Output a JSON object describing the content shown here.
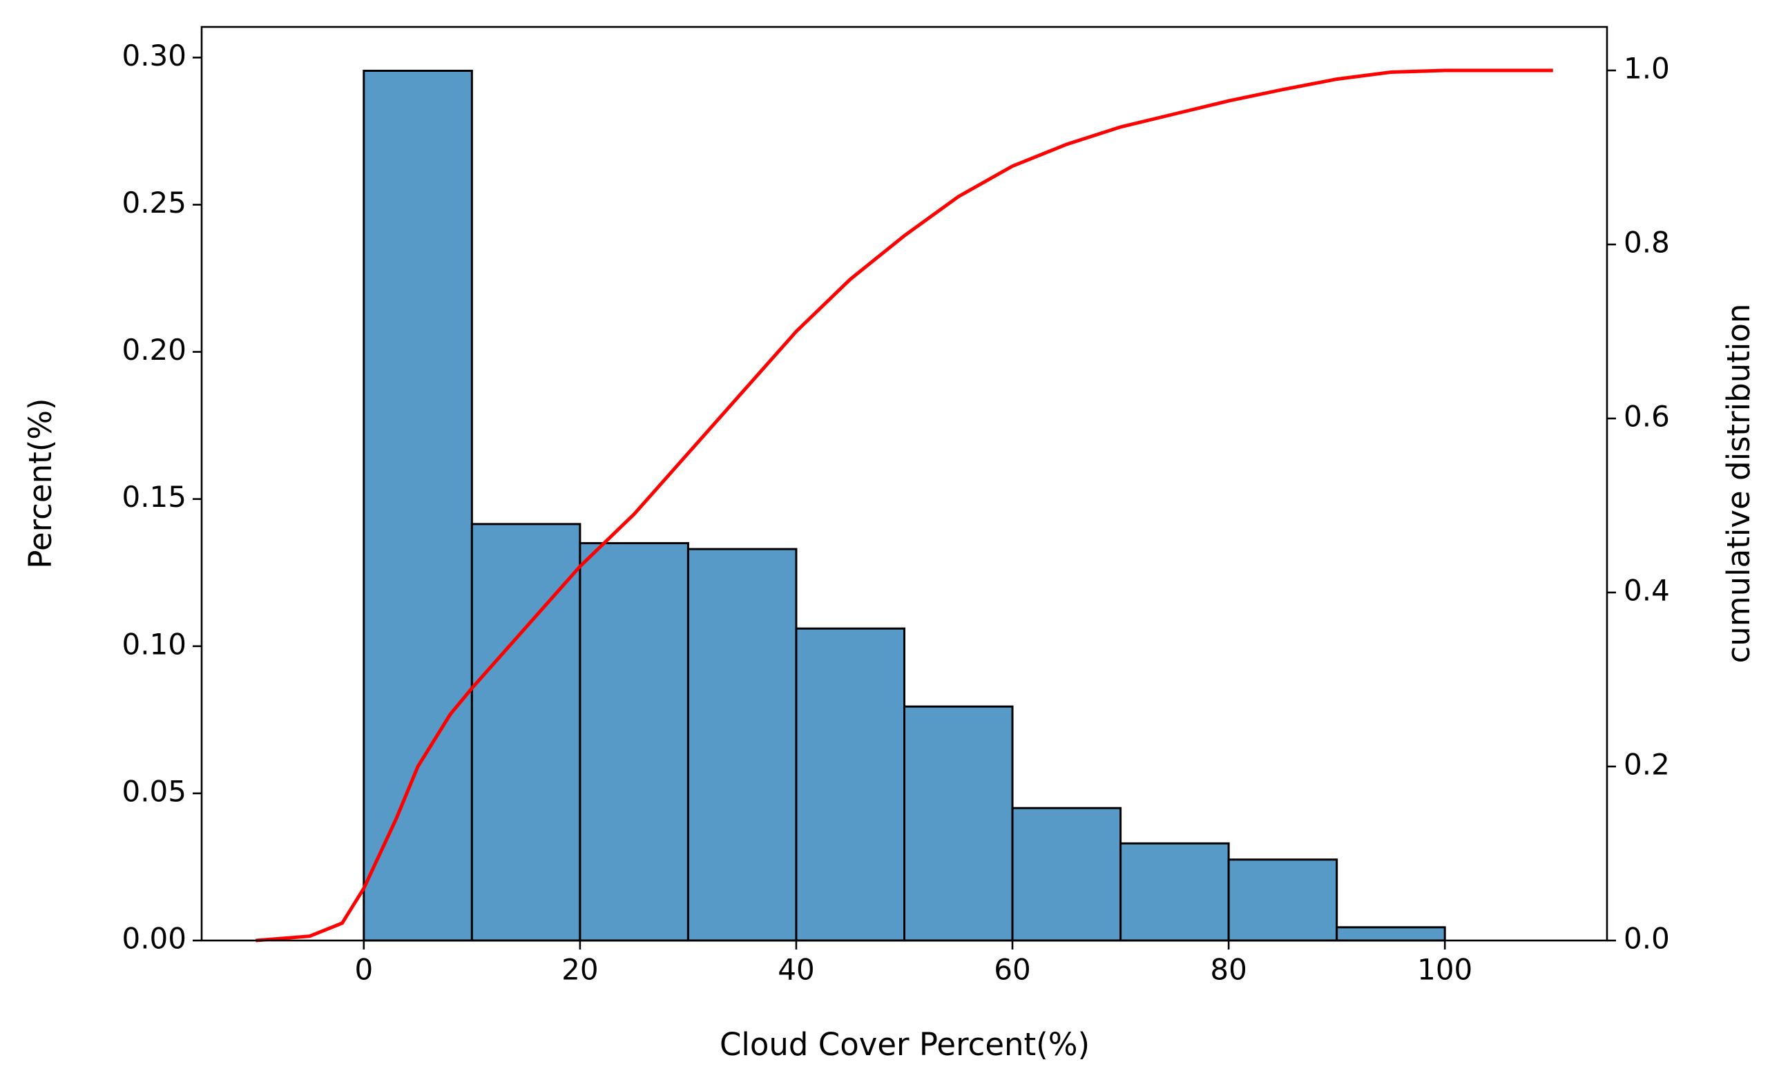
{
  "chart_data": {
    "type": "histogram",
    "xlabel": "Cloud Cover Percent(%)",
    "ylabel": "Percent(%)",
    "y2label": "cumulative distribution",
    "bins": [
      0,
      10,
      20,
      30,
      40,
      50,
      60,
      70,
      80,
      90,
      100
    ],
    "values": [
      0.2955,
      0.1415,
      0.135,
      0.133,
      0.106,
      0.0795,
      0.045,
      0.033,
      0.0275,
      0.0045
    ],
    "color": "#5799c7",
    "edgecolor": "#000000",
    "cdf": {
      "color": "#ff0000",
      "axis": "y2",
      "x": [
        -10,
        -5,
        -2,
        0,
        3,
        5,
        8,
        10,
        15,
        20,
        25,
        30,
        35,
        40,
        45,
        50,
        55,
        60,
        65,
        70,
        75,
        80,
        85,
        90,
        95,
        100,
        110
      ],
      "values": [
        0,
        0.005,
        0.02,
        0.06,
        0.14,
        0.2,
        0.26,
        0.29,
        0.36,
        0.43,
        0.49,
        0.56,
        0.63,
        0.7,
        0.76,
        0.81,
        0.855,
        0.89,
        0.915,
        0.935,
        0.95,
        0.965,
        0.978,
        0.99,
        0.998,
        1.0,
        1.0
      ]
    },
    "xlim": [
      -15,
      115
    ],
    "xticks": [
      0,
      20,
      40,
      60,
      80,
      100
    ],
    "ylim": [
      0,
      0.3104
    ],
    "yticks": [
      {
        "value": 0,
        "label": "0.00"
      },
      {
        "value": 0.05,
        "label": "0.05"
      },
      {
        "value": 0.1,
        "label": "0.10"
      },
      {
        "value": 0.15,
        "label": "0.15"
      },
      {
        "value": 0.2,
        "label": "0.20"
      },
      {
        "value": 0.25,
        "label": "0.25"
      },
      {
        "value": 0.3,
        "label": "0.30"
      }
    ],
    "y2lim": [
      0,
      1.05
    ],
    "y2ticks": [
      {
        "value": 0,
        "label": "0.0"
      },
      {
        "value": 0.2,
        "label": "0.2"
      },
      {
        "value": 0.4,
        "label": "0.4"
      },
      {
        "value": 0.6,
        "label": "0.6"
      },
      {
        "value": 0.8,
        "label": "0.8"
      },
      {
        "value": 1.0,
        "label": "1.0"
      }
    ]
  }
}
